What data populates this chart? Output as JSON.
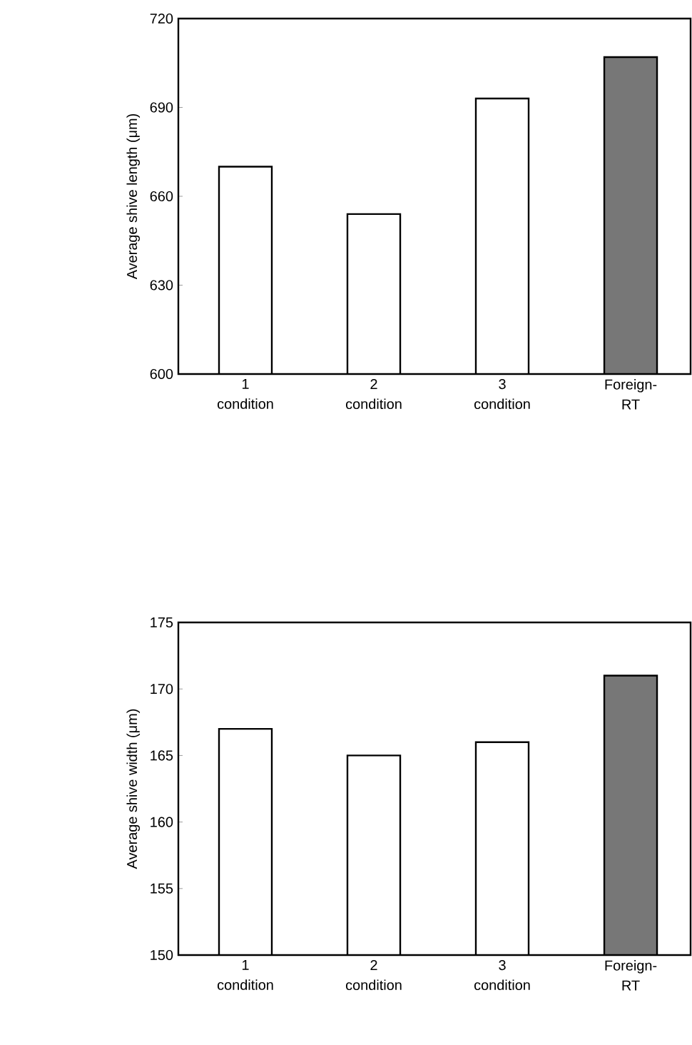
{
  "chart_data": [
    {
      "type": "bar",
      "ylabel": "Average shive length (μm)",
      "categories": [
        "1 condition",
        "2 condition",
        "3 condition",
        "Foreign-RT"
      ],
      "values": [
        670,
        654,
        693,
        707
      ],
      "colors": [
        "#ffffff",
        "#ffffff",
        "#ffffff",
        "#777777"
      ],
      "ylim": [
        600,
        720
      ],
      "yticks": [
        600,
        630,
        660,
        690,
        720
      ],
      "grid": false
    },
    {
      "type": "bar",
      "ylabel": "Average shive width (μm)",
      "categories": [
        "1 condition",
        "2 condition",
        "3 condition",
        "Foreign-RT"
      ],
      "values": [
        167,
        165,
        166,
        171
      ],
      "colors": [
        "#ffffff",
        "#ffffff",
        "#ffffff",
        "#777777"
      ],
      "ylim": [
        150,
        175
      ],
      "yticks": [
        150,
        155,
        160,
        165,
        170,
        175
      ],
      "grid": false
    }
  ]
}
